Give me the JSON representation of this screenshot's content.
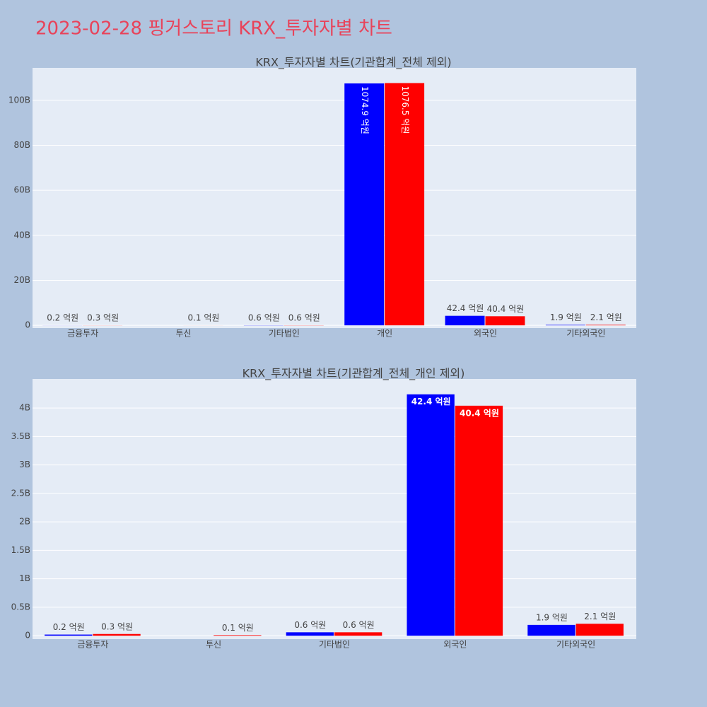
{
  "title": "2023-02-28 핑거스토리 KRX_투자자별 차트",
  "chart_data": [
    {
      "type": "bar",
      "title": "KRX_투자자별 차트(기관합계_전체 제외)",
      "categories": [
        "금융투자",
        "투신",
        "기타법인",
        "개인",
        "외국인",
        "기타외국인"
      ],
      "series": [
        {
          "color": "#0000ff",
          "values": [
            20000000,
            null,
            60000000,
            107490000000,
            4240000000,
            190000000
          ],
          "value_labels": [
            "0.2 억원",
            null,
            "0.6 억원",
            "1074.9 억원",
            "42.4 억원",
            "1.9 억원"
          ]
        },
        {
          "color": "#ff0000",
          "values": [
            30000000,
            10000000,
            60000000,
            107650000000,
            4040000000,
            210000000
          ],
          "value_labels": [
            "0.3 억원",
            "0.1 억원",
            "0.6 억원",
            "1076.5 억원",
            "40.4 억원",
            "2.1 억원"
          ]
        }
      ],
      "ylim": [
        -1200000000,
        114400000000
      ],
      "yticks": [
        0,
        {
          "value": 20000000000,
          "label": "20B"
        },
        {
          "value": 40000000000,
          "label": "40B"
        },
        {
          "value": 60000000000,
          "label": "60B"
        },
        {
          "value": 80000000000,
          "label": "80B"
        },
        {
          "value": 100000000000,
          "label": "100B"
        }
      ],
      "grid": true
    },
    {
      "type": "bar",
      "title": "KRX_투자자별 차트(기관합계_전체_개인 제외)",
      "categories": [
        "금융투자",
        "투신",
        "기타법인",
        "외국인",
        "기타외국인"
      ],
      "series": [
        {
          "color": "#0000ff",
          "values": [
            20000000,
            null,
            60000000,
            4240000000,
            190000000
          ],
          "value_labels": [
            "0.2 억원",
            null,
            "0.6 억원",
            "42.4 억원",
            "1.9 억원"
          ]
        },
        {
          "color": "#ff0000",
          "values": [
            30000000,
            10000000,
            60000000,
            4040000000,
            210000000
          ],
          "value_labels": [
            "0.3 억원",
            "0.1 억원",
            "0.6 억원",
            "40.4 억원",
            "2.1 억원"
          ]
        }
      ],
      "ylim": [
        -60000000,
        4510000000
      ],
      "yticks": [
        0,
        {
          "value": 500000000,
          "label": "0.5B"
        },
        {
          "value": 1000000000,
          "label": "1B"
        },
        {
          "value": 1500000000,
          "label": "1.5B"
        },
        {
          "value": 2000000000,
          "label": "2B"
        },
        {
          "value": 2500000000,
          "label": "2.5B"
        },
        {
          "value": 3000000000,
          "label": "3B"
        },
        {
          "value": 3500000000,
          "label": "3.5B"
        },
        {
          "value": 4000000000,
          "label": "4B"
        }
      ],
      "grid": true
    }
  ]
}
